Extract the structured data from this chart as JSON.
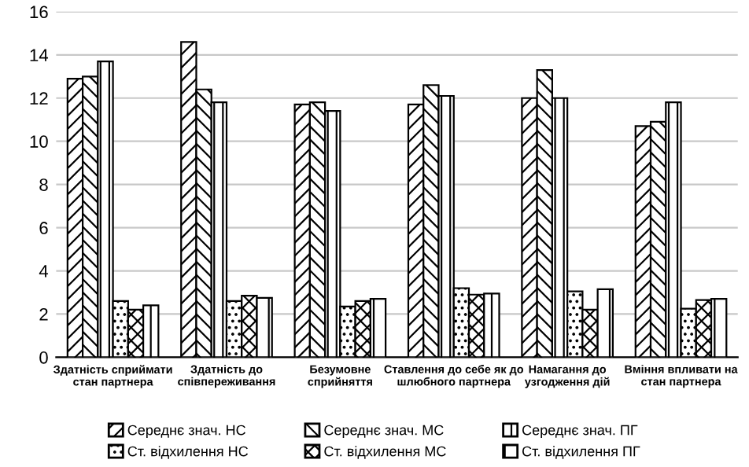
{
  "chart_data": {
    "type": "bar",
    "categories": [
      "Здатність сприймати\nстан партнера",
      "Здатність до\nспівпереживання",
      "Безумовне\nсприйняття",
      "Ставлення до себе як до\nшлюбного партнера",
      "Намагання до\nузгодження дій",
      "Вміння впливати на\nстан партнера"
    ],
    "series": [
      {
        "name": "Середнє знач. НС",
        "color": "#000000",
        "values": [
          12.9,
          14.6,
          11.7,
          11.7,
          12.0,
          10.7
        ]
      },
      {
        "name": "Середнє знач. МС",
        "color": "#000000",
        "values": [
          13.0,
          12.4,
          11.8,
          12.6,
          13.3,
          10.9
        ]
      },
      {
        "name": "Середнє знач. ПГ",
        "color": "#000000",
        "values": [
          13.7,
          11.8,
          11.4,
          12.1,
          12.0,
          11.8
        ]
      },
      {
        "name": "Ст. відхилення НС",
        "color": "#000000",
        "values": [
          2.6,
          2.6,
          2.35,
          3.2,
          3.05,
          2.25
        ]
      },
      {
        "name": "Ст. відхилення МС",
        "color": "#000000",
        "values": [
          2.2,
          2.85,
          2.6,
          2.9,
          2.2,
          2.65
        ]
      },
      {
        "name": "Ст. відхилення ПГ",
        "color": "#000000",
        "values": [
          2.4,
          2.75,
          2.7,
          2.95,
          3.15,
          2.7
        ]
      }
    ],
    "ylim": [
      0,
      16
    ],
    "yticks": [
      0,
      2,
      4,
      6,
      8,
      10,
      12,
      14,
      16
    ],
    "grid": "y",
    "legend": "bottom"
  }
}
